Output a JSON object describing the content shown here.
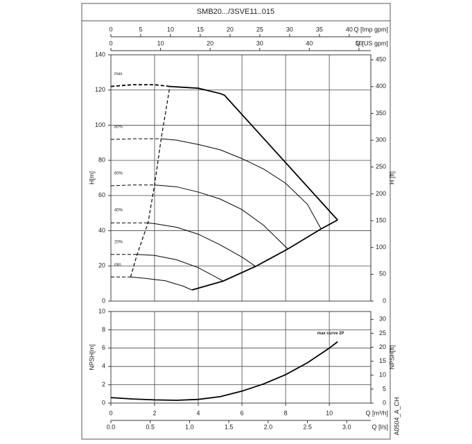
{
  "chart_data": [
    {
      "type": "line",
      "title": "SMB20.../3SVE11..015",
      "ylabel": "H[m]",
      "ylim": [
        0,
        140
      ],
      "yticks": [
        0,
        20,
        40,
        60,
        80,
        100,
        120,
        140
      ],
      "y2label": "H [ft]",
      "y2lim": [
        0,
        459.3
      ],
      "y2ticks": [
        0,
        50,
        100,
        150,
        200,
        250,
        300,
        350,
        400,
        450
      ],
      "xlim": [
        0,
        11.9
      ],
      "xticks": [
        0,
        2,
        4,
        6,
        8,
        10
      ],
      "grid": true,
      "top_axes": [
        {
          "label": "Q [Imp gpm]",
          "lim": [
            0,
            43.62
          ],
          "ticks": [
            0,
            5,
            10,
            15,
            20,
            25,
            30,
            35,
            40
          ]
        },
        {
          "label": "Q [US gpm]",
          "lim": [
            0,
            52.39
          ],
          "ticks": [
            0,
            10,
            20,
            30,
            40,
            50
          ]
        }
      ],
      "series": [
        {
          "name": "max",
          "color": "#000",
          "x": [
            2.7,
            4,
            5,
            5.2,
            10.38
          ],
          "values": [
            122,
            121,
            118,
            117,
            46.1
          ],
          "dashed_x": [
            0,
            1,
            2,
            2.7
          ],
          "dashed_values": [
            122,
            123,
            123,
            122
          ]
        },
        {
          "name": "80%",
          "color": "#000",
          "x": [
            2.3,
            3,
            4,
            5,
            6,
            7,
            8,
            9,
            9.62
          ],
          "values": [
            92.3,
            91.5,
            89,
            86,
            81,
            75,
            67,
            55,
            41
          ],
          "dashed_x": [
            0,
            1,
            2.3
          ],
          "dashed_values": [
            91.9,
            92.3,
            92.3
          ]
        },
        {
          "name": "60%",
          "color": "#000",
          "x": [
            2,
            3,
            4,
            5,
            6,
            7,
            8.1
          ],
          "values": [
            66,
            65,
            62,
            58,
            52,
            43,
            29.6
          ],
          "dashed_x": [
            0,
            1,
            2
          ],
          "dashed_values": [
            65.5,
            66,
            66
          ]
        },
        {
          "name": "40%",
          "color": "#000",
          "x": [
            1.7,
            2,
            3,
            4,
            5,
            6,
            6.63
          ],
          "values": [
            44.5,
            44,
            42,
            38,
            32,
            25,
            19.7
          ],
          "dashed_x": [
            0,
            1.7
          ],
          "dashed_values": [
            44.5,
            44.5
          ]
        },
        {
          "name": "20%",
          "color": "#000",
          "x": [
            1.2,
            2,
            3,
            4,
            5.14
          ],
          "values": [
            26.5,
            26,
            23.5,
            19,
            11.4
          ],
          "dashed_x": [
            0,
            1.2
          ],
          "dashed_values": [
            26.5,
            26.5
          ]
        },
        {
          "name": "min",
          "color": "#000",
          "x": [
            0.9,
            1.5,
            2.5,
            3.3,
            3.71
          ],
          "values": [
            13.7,
            13,
            11.5,
            8.5,
            6.3
          ],
          "dashed_x": [
            0,
            0.9
          ],
          "dashed_values": [
            13.7,
            13.7
          ]
        }
      ],
      "boundary": {
        "x": [
          3.71,
          5.14,
          6.63,
          8.1,
          9.62,
          10.38
        ],
        "values": [
          6.3,
          11.4,
          19.7,
          29.6,
          41,
          46.1
        ]
      },
      "dashed_boundary": {
        "x": [
          0.9,
          1.2,
          1.7,
          2.0,
          2.3,
          2.7
        ],
        "values": [
          13.7,
          26.5,
          44.5,
          66,
          92.3,
          122
        ]
      }
    },
    {
      "type": "line",
      "ylabel": "NPSH[m]",
      "ylim": [
        0,
        10
      ],
      "yticks": [
        0,
        2,
        4,
        6,
        8,
        10
      ],
      "y2label": "NPSH[ft]",
      "y2lim": [
        0,
        32.81
      ],
      "y2ticks": [
        0,
        5,
        10,
        15,
        20,
        25,
        30
      ],
      "xlabel": "Q [m³/h]",
      "xlim": [
        0,
        11.9
      ],
      "xticks": [
        0,
        2,
        4,
        6,
        8,
        10
      ],
      "grid": true,
      "bottom_axis": {
        "label": "Q [l/s]",
        "lim": [
          0,
          3.306
        ],
        "ticks": [
          {
            "value": 0,
            "label": "0.0"
          },
          0.5,
          {
            "value": 1,
            "label": "1.0"
          },
          1.5,
          {
            "value": 2,
            "label": "2.0"
          },
          2.5,
          {
            "value": 3,
            "label": "3.0"
          }
        ]
      },
      "series": [
        {
          "name": "max curve 2P",
          "color": "#000",
          "x": [
            0,
            1,
            2,
            3,
            4,
            5,
            6,
            7,
            8,
            9,
            10,
            10.38
          ],
          "values": [
            0.6,
            0.45,
            0.35,
            0.3,
            0.4,
            0.7,
            1.3,
            2.1,
            3.1,
            4.4,
            6.0,
            6.7
          ]
        }
      ],
      "code": "A0504_A_CH"
    }
  ]
}
